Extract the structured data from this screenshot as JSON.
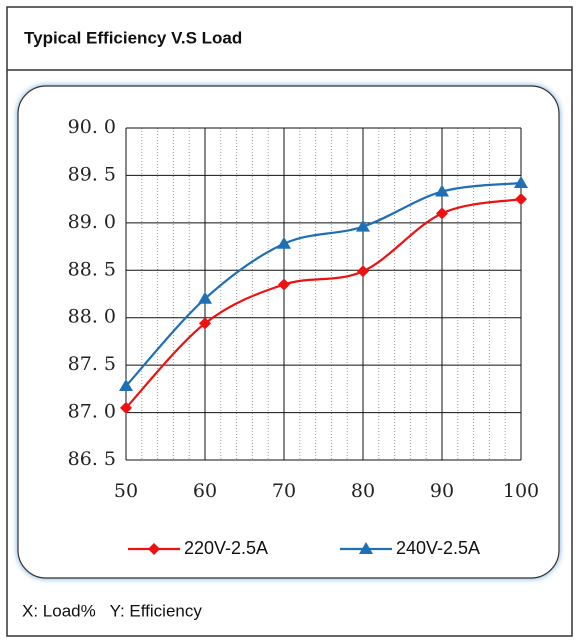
{
  "chart_data": {
    "type": "line",
    "title": "Typical Efficiency V.S Load",
    "annotation": "X: Load%   Y: Efficiency",
    "x": [
      50,
      60,
      70,
      80,
      90,
      100
    ],
    "xlim": [
      50,
      100
    ],
    "xticks": [
      50,
      60,
      70,
      80,
      90,
      100
    ],
    "ylim": [
      86.5,
      90
    ],
    "yticks": [
      {
        "value": 86.5,
        "label": "86. 5"
      },
      {
        "value": 87,
        "label": "87. 0"
      },
      {
        "value": 87.5,
        "label": "87. 5"
      },
      {
        "value": 88,
        "label": "88. 0"
      },
      {
        "value": 88.5,
        "label": "88. 5"
      },
      {
        "value": 89,
        "label": "89. 0"
      },
      {
        "value": 89.5,
        "label": "89. 5"
      },
      {
        "value": 90,
        "label": "90. 0"
      }
    ],
    "grid": true,
    "legend": "bottom",
    "series": [
      {
        "name": "220V-2.5A",
        "color": "#ee1111",
        "marker": "diamond",
        "values": [
          87.05,
          87.94,
          88.35,
          88.49,
          89.1,
          89.25
        ]
      },
      {
        "name": "240V-2.5A",
        "color": "#1f6fb5",
        "marker": "triangle",
        "values": [
          87.28,
          88.2,
          88.78,
          88.96,
          89.33,
          89.42
        ]
      }
    ]
  }
}
